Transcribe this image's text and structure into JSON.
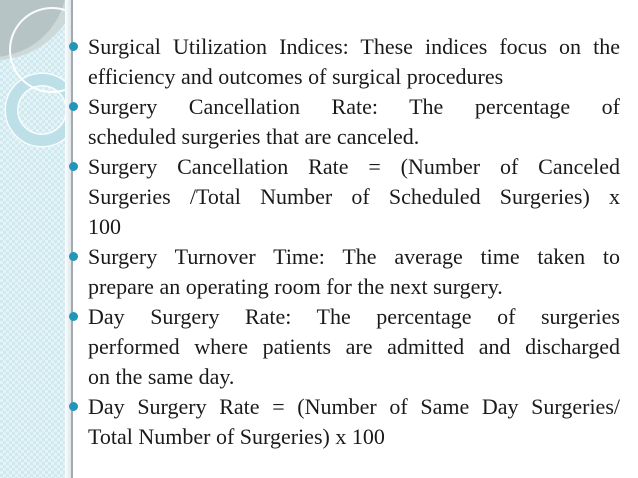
{
  "slide": {
    "accent_color": "#2196b8",
    "sidebar_color": "#cfe9f0",
    "text_color": "#1a1a1a",
    "background": "#ffffff",
    "bullets": [
      {
        "text": "Surgical Utilization Indices: These indices focus on the efficiency and outcomes of surgical procedures",
        "lines": [
          "Surgical Utilization Indices: These indices focus on the",
          "efficiency and outcomes of surgical procedures"
        ]
      },
      {
        "text": "Surgery Cancellation Rate: The percentage of scheduled surgeries that are canceled.",
        "lines": [
          "Surgery Cancellation Rate: The percentage of",
          "scheduled surgeries that are canceled."
        ]
      },
      {
        "text": "Surgery Cancellation Rate = (Number of Canceled Surgeries /Total Number of Scheduled Surgeries) x 100",
        "lines": [
          "Surgery Cancellation Rate = (Number of Canceled",
          "Surgeries /Total Number of Scheduled Surgeries) x",
          "100"
        ]
      },
      {
        "text": "Surgery Turnover Time: The average time taken to prepare an operating room for the next surgery.",
        "lines": [
          "Surgery Turnover Time: The average time taken to",
          "prepare an operating room for the next surgery."
        ]
      },
      {
        "text": "Day Surgery Rate: The percentage of surgeries performed where patients are admitted and discharged on the same day.",
        "lines": [
          "Day Surgery Rate: The percentage of surgeries",
          "performed where patients are admitted and discharged",
          "on the same day."
        ]
      },
      {
        "text": "Day Surgery Rate = (Number of Same Day Surgeries/ Total Number of Surgeries) x 100",
        "lines": [
          "Day Surgery Rate = (Number of Same Day Surgeries/",
          "Total Number of Surgeries) x 100"
        ]
      }
    ]
  }
}
